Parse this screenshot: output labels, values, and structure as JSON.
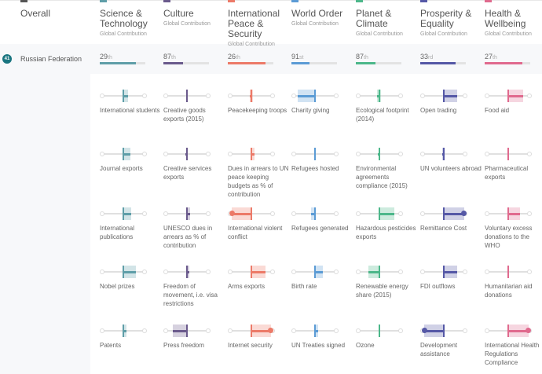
{
  "header": {
    "overall": {
      "label": "Overall",
      "color": "#555555"
    },
    "columns": [
      {
        "title": "Science & Technology",
        "sub": "Global Contribution",
        "color": "#5f9ea8"
      },
      {
        "title": "Culture",
        "sub": "Global Contribution",
        "color": "#6a5a8c"
      },
      {
        "title": "International Peace & Security",
        "sub": "Global Contribution",
        "color": "#ec7a68"
      },
      {
        "title": "World Order",
        "sub": "Global Contribution",
        "color": "#5b9bd5"
      },
      {
        "title": "Planet & Climate",
        "sub": "Global Contribution",
        "color": "#4cb78a"
      },
      {
        "title": "Prosperity & Equality",
        "sub": "Global Contribution",
        "color": "#5558a6"
      },
      {
        "title": "Health & Wellbeing",
        "sub": "Global Contribution",
        "color": "#e06a8e"
      }
    ]
  },
  "country": {
    "rank_badge": "41",
    "name": "Russian Federation",
    "ranks": [
      {
        "num": "29",
        "suffix": "th",
        "pct": 80
      },
      {
        "num": "87",
        "suffix": "th",
        "pct": 43
      },
      {
        "num": "26",
        "suffix": "th",
        "pct": 83
      },
      {
        "num": "91",
        "suffix": "st",
        "pct": 40
      },
      {
        "num": "87",
        "suffix": "th",
        "pct": 43
      },
      {
        "num": "33",
        "suffix": "rd",
        "pct": 78
      },
      {
        "num": "27",
        "suffix": "th",
        "pct": 82
      }
    ]
  },
  "indicators": [
    [
      {
        "label": "International students",
        "mark": 50,
        "band": [
          50,
          62
        ],
        "thick": [
          50,
          62
        ]
      },
      {
        "label": "Journal exports",
        "mark": 50,
        "band": [
          50,
          66
        ],
        "thick": [
          50,
          66
        ]
      },
      {
        "label": "International publications",
        "mark": 50,
        "band": [
          50,
          68
        ],
        "thick": [
          50,
          68
        ]
      },
      {
        "label": "Nobel prizes",
        "mark": 50,
        "band": [
          50,
          80
        ],
        "thick": [
          50,
          80
        ]
      },
      {
        "label": "Patents",
        "mark": 50,
        "band": [
          50,
          58
        ],
        "thick": [
          50,
          58
        ]
      }
    ],
    [
      {
        "label": "Creative goods exports (2015)",
        "mark": 50,
        "band": null,
        "thick": null
      },
      {
        "label": "Creative services exports",
        "mark": 50,
        "band": null,
        "thick": [
          47,
          50
        ]
      },
      {
        "label": "UNESCO dues in arrears as % of contribution",
        "mark": 50,
        "band": [
          50,
          58
        ],
        "thick": [
          50,
          58
        ]
      },
      {
        "label": "Freedom of movement, i.e. visa restrictions",
        "mark": 50,
        "band": [
          50,
          55
        ],
        "thick": [
          50,
          55
        ]
      },
      {
        "label": "Press freedom",
        "mark": 50,
        "band": [
          16,
          50
        ],
        "thick": [
          16,
          50
        ]
      }
    ],
    [
      {
        "label": "Peacekeeping troops",
        "mark": 50,
        "band": [
          47,
          53
        ],
        "thick": [
          47,
          50
        ]
      },
      {
        "label": "Dues in arrears to UN peace keeping budgets as % of contribution",
        "mark": 50,
        "band": [
          50,
          58
        ],
        "thick": [
          50,
          58
        ]
      },
      {
        "label": "International violent conflict",
        "mark": 50,
        "band": [
          4,
          50
        ],
        "thick": [
          4,
          50
        ],
        "dot": 4
      },
      {
        "label": "Arms exports",
        "mark": 50,
        "band": [
          50,
          84
        ],
        "thick": [
          50,
          84
        ]
      },
      {
        "label": "Internet security",
        "mark": 50,
        "band": [
          50,
          96
        ],
        "thick": [
          50,
          96
        ],
        "dot": 96
      }
    ],
    [
      {
        "label": "Charity giving",
        "mark": 50,
        "band": [
          10,
          50
        ],
        "thick": [
          10,
          50
        ]
      },
      {
        "label": "Refugees hosted",
        "mark": 50,
        "band": null,
        "thick": null
      },
      {
        "label": "Refugees generated",
        "mark": 50,
        "band": [
          40,
          50
        ],
        "thick": [
          40,
          50
        ]
      },
      {
        "label": "Birth rate",
        "mark": 50,
        "band": [
          50,
          68
        ],
        "thick": [
          50,
          68
        ]
      },
      {
        "label": "UN Treaties signed",
        "mark": 50,
        "band": [
          50,
          58
        ],
        "thick": [
          50,
          58
        ]
      }
    ],
    [
      {
        "label": "Ecological footprint (2014)",
        "mark": 50,
        "band": [
          44,
          54
        ],
        "thick": [
          44,
          50
        ]
      },
      {
        "label": "Environmental agreements compliance (2015)",
        "mark": 50,
        "band": null,
        "thick": [
          47,
          50
        ]
      },
      {
        "label": "Hazardous pesticides exports",
        "mark": 50,
        "band": [
          50,
          86
        ],
        "thick": [
          50,
          86
        ]
      },
      {
        "label": "Renewable energy share (2015)",
        "mark": 50,
        "band": [
          24,
          50
        ],
        "thick": [
          24,
          50
        ]
      },
      {
        "label": "Ozone",
        "mark": 50,
        "band": null,
        "thick": null
      }
    ],
    [
      {
        "label": "Open trading",
        "mark": 50,
        "band": [
          50,
          82
        ],
        "thick": [
          50,
          82
        ]
      },
      {
        "label": "UN volunteers abroad",
        "mark": 50,
        "band": [
          46,
          50
        ],
        "thick": [
          46,
          50
        ]
      },
      {
        "label": "Remittance Cost",
        "mark": 50,
        "band": [
          50,
          98
        ],
        "thick": [
          50,
          98
        ],
        "dot": 98
      },
      {
        "label": "FDI outflows",
        "mark": 50,
        "band": [
          50,
          82
        ],
        "thick": [
          50,
          82
        ]
      },
      {
        "label": "Development assistance",
        "mark": 50,
        "band": [
          4,
          50
        ],
        "thick": [
          4,
          50
        ],
        "dot": 4
      }
    ],
    [
      {
        "label": "Food aid",
        "mark": 50,
        "band": [
          50,
          86
        ],
        "thick": [
          50,
          86
        ]
      },
      {
        "label": "Pharmaceutical exports",
        "mark": 50,
        "band": null,
        "thick": null
      },
      {
        "label": "Voluntary excess donations to the WHO",
        "mark": 50,
        "band": [
          50,
          78
        ],
        "thick": [
          50,
          78
        ]
      },
      {
        "label": "Humanitarian aid donations",
        "mark": 50,
        "band": null,
        "thick": null
      },
      {
        "label": "International Health Regulations Compliance",
        "mark": 50,
        "band": [
          50,
          98
        ],
        "thick": [
          50,
          98
        ],
        "dot": 98
      }
    ]
  ]
}
